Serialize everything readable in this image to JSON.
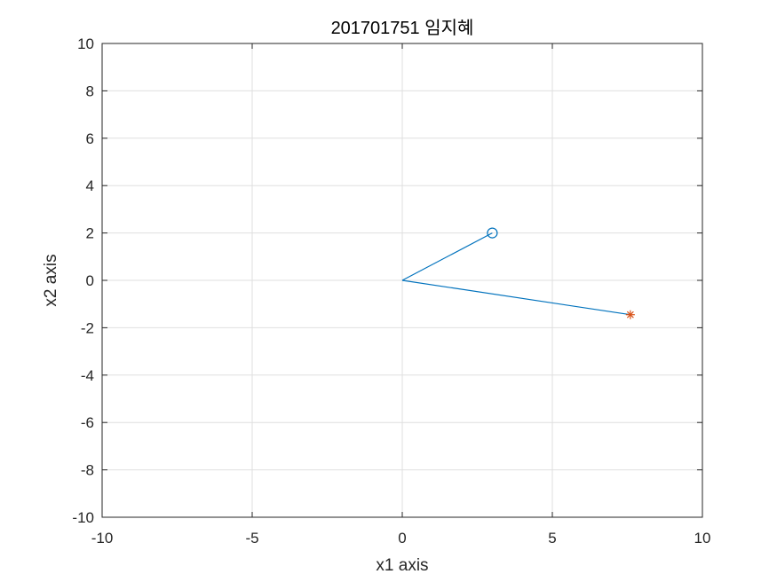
{
  "chart_data": {
    "type": "line",
    "title": "201701751 임지혜",
    "xlabel": "x1 axis",
    "ylabel": "x2 axis",
    "xlim": [
      -10,
      10
    ],
    "ylim": [
      -10,
      10
    ],
    "xticks": [
      -10,
      -5,
      0,
      5,
      10
    ],
    "yticks": [
      -10,
      -8,
      -6,
      -4,
      -2,
      0,
      2,
      4,
      6,
      8,
      10
    ],
    "xtick_labels": [
      "-10",
      "-5",
      "0",
      "5",
      "10"
    ],
    "ytick_labels": [
      "-10",
      "-8",
      "-6",
      "-4",
      "-2",
      "0",
      "2",
      "4",
      "6",
      "8",
      "10"
    ],
    "grid": true,
    "legend": "none",
    "series": [
      {
        "x": [
          0,
          3
        ],
        "y": [
          0,
          2
        ],
        "color": "#0072BD",
        "marker": "circle-end"
      },
      {
        "x": [
          0,
          7.6
        ],
        "y": [
          0,
          -1.45
        ],
        "color": "#0072BD",
        "marker": "none"
      },
      {
        "x": [
          7.6
        ],
        "y": [
          -1.45
        ],
        "color": "#D95319",
        "marker": "asterisk"
      }
    ],
    "colors": {
      "axis": "#262626",
      "grid": "#dfdfdf",
      "line": "#0072BD",
      "asterisk": "#D95319"
    }
  }
}
